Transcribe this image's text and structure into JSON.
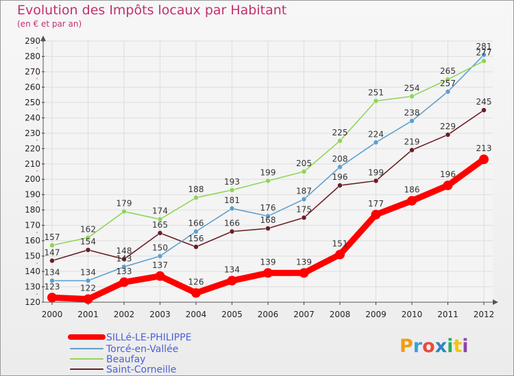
{
  "chart_data": {
    "type": "line",
    "title": "Evolution des Impôts locaux par Habitant",
    "subtitle": "(en € et par an)",
    "x": [
      "2000",
      "2001",
      "2002",
      "2003",
      "2004",
      "2005",
      "2006",
      "2007",
      "2008",
      "2009",
      "2010",
      "2011",
      "2012"
    ],
    "ylim": [
      120,
      290
    ],
    "yticks": [
      120,
      130,
      140,
      150,
      160,
      170,
      180,
      190,
      200,
      210,
      220,
      230,
      240,
      250,
      260,
      270,
      280,
      290
    ],
    "grid": true,
    "legend": "bottom-left",
    "series": [
      {
        "name": "SILLé-LE-PHILIPPE",
        "color": "#ff0000",
        "values": [
          123,
          122,
          133,
          137,
          126,
          134,
          139,
          139,
          151,
          177,
          186,
          196,
          213
        ]
      },
      {
        "name": "Torcé-en-Vallée",
        "color": "#5e9fcf",
        "values": [
          134,
          134,
          143,
          150,
          166,
          181,
          176,
          187,
          208,
          224,
          238,
          257,
          281
        ]
      },
      {
        "name": "Beaufay",
        "color": "#90d45a",
        "values": [
          157,
          162,
          179,
          174,
          188,
          193,
          199,
          205,
          225,
          251,
          254,
          265,
          277
        ]
      },
      {
        "name": "Saint-Corneille",
        "color": "#6b1e25",
        "values": [
          147,
          154,
          148,
          165,
          156,
          166,
          168,
          175,
          196,
          199,
          219,
          229,
          245
        ]
      }
    ]
  },
  "logo_text": "Proxiti"
}
